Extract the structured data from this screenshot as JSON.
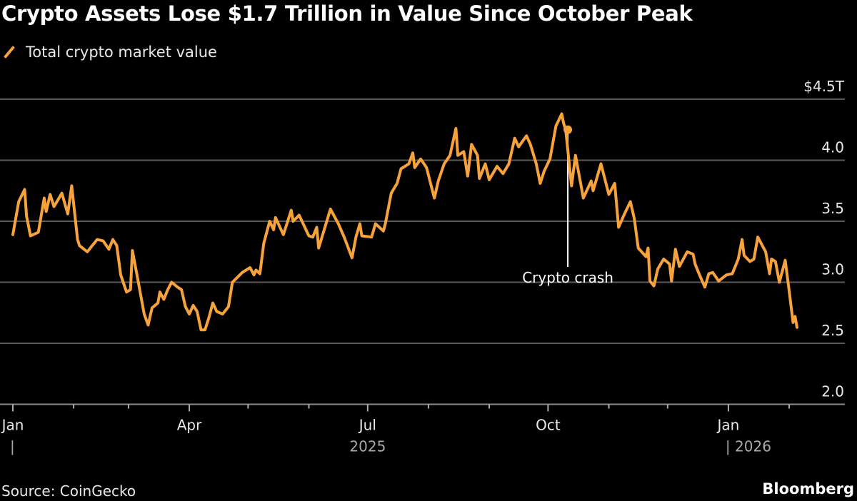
{
  "chart_data": {
    "type": "line",
    "title": "Crypto Assets Lose $1.7 Trillion in Value Since October Peak",
    "source": "Source: CoinGecko",
    "brand": "Bloomberg",
    "legend": {
      "placement": "top-left"
    },
    "grid": true,
    "ylim": [
      2.0,
      4.5
    ],
    "y_ticks": [
      {
        "value": 4.5,
        "label": "$4.5T"
      },
      {
        "value": 4.0,
        "label": "4.0"
      },
      {
        "value": 3.5,
        "label": "3.5"
      },
      {
        "value": 3.0,
        "label": "3.0"
      },
      {
        "value": 2.5,
        "label": "2.5"
      },
      {
        "value": 2.0,
        "label": "2.0"
      }
    ],
    "x_ticks": [
      {
        "date": "2025-01-01",
        "label": "Jan"
      },
      {
        "date": "2025-04-01",
        "label": "Apr"
      },
      {
        "date": "2025-07-01",
        "label": "Jul"
      },
      {
        "date": "2025-10-01",
        "label": "Oct"
      },
      {
        "date": "2026-01-01",
        "label": "Jan"
      }
    ],
    "year_labels": [
      {
        "date": "2025-01-01",
        "label": "|"
      },
      {
        "date": "2025-07-01",
        "label": "2025"
      },
      {
        "date": "2026-01-01",
        "label": "| 2026"
      }
    ],
    "annotations": [
      {
        "date": "2025-10-10",
        "value": 4.25,
        "label": "Crypto crash"
      }
    ],
    "series": [
      {
        "name": "Total crypto market value",
        "color": "#f7a23b",
        "points": [
          [
            "2025-01-01",
            3.39
          ],
          [
            "2025-01-04",
            3.66
          ],
          [
            "2025-01-07",
            3.76
          ],
          [
            "2025-01-08",
            3.54
          ],
          [
            "2025-01-10",
            3.38
          ],
          [
            "2025-01-14",
            3.41
          ],
          [
            "2025-01-17",
            3.69
          ],
          [
            "2025-01-18",
            3.58
          ],
          [
            "2025-01-20",
            3.72
          ],
          [
            "2025-01-22",
            3.62
          ],
          [
            "2025-01-26",
            3.73
          ],
          [
            "2025-01-29",
            3.56
          ],
          [
            "2025-01-31",
            3.79
          ],
          [
            "2025-02-03",
            3.35
          ],
          [
            "2025-02-04",
            3.3
          ],
          [
            "2025-02-08",
            3.25
          ],
          [
            "2025-02-13",
            3.35
          ],
          [
            "2025-02-16",
            3.34
          ],
          [
            "2025-02-19",
            3.27
          ],
          [
            "2025-02-21",
            3.35
          ],
          [
            "2025-02-23",
            3.3
          ],
          [
            "2025-02-25",
            3.06
          ],
          [
            "2025-02-28",
            2.92
          ],
          [
            "2025-03-02",
            2.94
          ],
          [
            "2025-03-03",
            3.26
          ],
          [
            "2025-03-06",
            3.0
          ],
          [
            "2025-03-09",
            2.74
          ],
          [
            "2025-03-11",
            2.65
          ],
          [
            "2025-03-13",
            2.79
          ],
          [
            "2025-03-16",
            2.83
          ],
          [
            "2025-03-17",
            2.92
          ],
          [
            "2025-03-19",
            2.86
          ],
          [
            "2025-03-21",
            2.94
          ],
          [
            "2025-03-23",
            3.0
          ],
          [
            "2025-03-26",
            2.96
          ],
          [
            "2025-03-28",
            2.94
          ],
          [
            "2025-03-30",
            2.8
          ],
          [
            "2025-04-01",
            2.74
          ],
          [
            "2025-04-03",
            2.81
          ],
          [
            "2025-04-05",
            2.76
          ],
          [
            "2025-04-07",
            2.61
          ],
          [
            "2025-04-09",
            2.61
          ],
          [
            "2025-04-11",
            2.71
          ],
          [
            "2025-04-13",
            2.83
          ],
          [
            "2025-04-15",
            2.76
          ],
          [
            "2025-04-18",
            2.74
          ],
          [
            "2025-04-21",
            2.8
          ],
          [
            "2025-04-23",
            3.0
          ],
          [
            "2025-04-28",
            3.08
          ],
          [
            "2025-05-02",
            3.12
          ],
          [
            "2025-05-04",
            3.06
          ],
          [
            "2025-05-05",
            3.1
          ],
          [
            "2025-05-07",
            3.07
          ],
          [
            "2025-05-09",
            3.32
          ],
          [
            "2025-05-12",
            3.5
          ],
          [
            "2025-05-14",
            3.43
          ],
          [
            "2025-05-15",
            3.53
          ],
          [
            "2025-05-19",
            3.39
          ],
          [
            "2025-05-23",
            3.59
          ],
          [
            "2025-05-24",
            3.5
          ],
          [
            "2025-05-27",
            3.55
          ],
          [
            "2025-06-01",
            3.38
          ],
          [
            "2025-06-03",
            3.37
          ],
          [
            "2025-06-05",
            3.45
          ],
          [
            "2025-06-06",
            3.28
          ],
          [
            "2025-06-12",
            3.6
          ],
          [
            "2025-06-16",
            3.48
          ],
          [
            "2025-06-19",
            3.37
          ],
          [
            "2025-06-23",
            3.2
          ],
          [
            "2025-06-25",
            3.37
          ],
          [
            "2025-06-27",
            3.48
          ],
          [
            "2025-06-28",
            3.38
          ],
          [
            "2025-07-03",
            3.37
          ],
          [
            "2025-07-05",
            3.48
          ],
          [
            "2025-07-09",
            3.42
          ],
          [
            "2025-07-10",
            3.48
          ],
          [
            "2025-07-13",
            3.73
          ],
          [
            "2025-07-16",
            3.81
          ],
          [
            "2025-07-18",
            3.93
          ],
          [
            "2025-07-22",
            3.97
          ],
          [
            "2025-07-24",
            4.06
          ],
          [
            "2025-07-25",
            3.94
          ],
          [
            "2025-07-28",
            4.01
          ],
          [
            "2025-07-31",
            3.94
          ],
          [
            "2025-08-04",
            3.69
          ],
          [
            "2025-08-06",
            3.83
          ],
          [
            "2025-08-09",
            3.97
          ],
          [
            "2025-08-12",
            4.04
          ],
          [
            "2025-08-15",
            4.26
          ],
          [
            "2025-08-16",
            4.04
          ],
          [
            "2025-08-19",
            4.07
          ],
          [
            "2025-08-21",
            3.87
          ],
          [
            "2025-08-23",
            4.13
          ],
          [
            "2025-08-26",
            4.04
          ],
          [
            "2025-08-27",
            3.85
          ],
          [
            "2025-08-30",
            3.97
          ],
          [
            "2025-09-01",
            3.84
          ],
          [
            "2025-09-05",
            3.95
          ],
          [
            "2025-09-08",
            3.89
          ],
          [
            "2025-09-11",
            3.97
          ],
          [
            "2025-09-14",
            4.18
          ],
          [
            "2025-09-16",
            4.11
          ],
          [
            "2025-09-20",
            4.2
          ],
          [
            "2025-09-22",
            4.13
          ],
          [
            "2025-09-25",
            3.97
          ],
          [
            "2025-09-27",
            3.81
          ],
          [
            "2025-09-29",
            3.91
          ],
          [
            "2025-10-02",
            4.01
          ],
          [
            "2025-10-05",
            4.28
          ],
          [
            "2025-10-08",
            4.38
          ],
          [
            "2025-10-09",
            4.3
          ],
          [
            "2025-10-10",
            4.25
          ],
          [
            "2025-10-13",
            3.79
          ],
          [
            "2025-10-15",
            4.04
          ],
          [
            "2025-10-19",
            3.69
          ],
          [
            "2025-10-23",
            3.83
          ],
          [
            "2025-10-24",
            3.75
          ],
          [
            "2025-10-28",
            3.97
          ],
          [
            "2025-11-01",
            3.72
          ],
          [
            "2025-11-04",
            3.81
          ],
          [
            "2025-11-06",
            3.45
          ],
          [
            "2025-11-09",
            3.56
          ],
          [
            "2025-11-12",
            3.66
          ],
          [
            "2025-11-14",
            3.52
          ],
          [
            "2025-11-16",
            3.28
          ],
          [
            "2025-11-20",
            3.21
          ],
          [
            "2025-11-21",
            3.28
          ],
          [
            "2025-11-22",
            3.01
          ],
          [
            "2025-11-24",
            2.97
          ],
          [
            "2025-11-26",
            3.11
          ],
          [
            "2025-11-29",
            3.19
          ],
          [
            "2025-12-02",
            3.15
          ],
          [
            "2025-12-03",
            3.01
          ],
          [
            "2025-12-05",
            3.27
          ],
          [
            "2025-12-07",
            3.13
          ],
          [
            "2025-12-11",
            3.25
          ],
          [
            "2025-12-14",
            3.23
          ],
          [
            "2025-12-15",
            3.15
          ],
          [
            "2025-12-17",
            3.07
          ],
          [
            "2025-12-20",
            2.96
          ],
          [
            "2025-12-22",
            3.07
          ],
          [
            "2025-12-24",
            3.08
          ],
          [
            "2025-12-27",
            3.01
          ],
          [
            "2025-12-31",
            3.06
          ],
          [
            "2026-01-03",
            3.07
          ],
          [
            "2026-01-06",
            3.19
          ],
          [
            "2026-01-08",
            3.35
          ],
          [
            "2026-01-09",
            3.22
          ],
          [
            "2026-01-12",
            3.17
          ],
          [
            "2026-01-14",
            3.19
          ],
          [
            "2026-01-16",
            3.37
          ],
          [
            "2026-01-18",
            3.31
          ],
          [
            "2026-01-20",
            3.25
          ],
          [
            "2026-01-22",
            3.07
          ],
          [
            "2026-01-23",
            3.19
          ],
          [
            "2026-01-25",
            3.17
          ],
          [
            "2026-01-27",
            3.0
          ],
          [
            "2026-01-30",
            3.18
          ],
          [
            "2026-02-01",
            2.93
          ],
          [
            "2026-02-03",
            2.67
          ],
          [
            "2026-02-04",
            2.72
          ],
          [
            "2026-02-05",
            2.63
          ]
        ]
      }
    ]
  },
  "colors": {
    "background": "#000000",
    "line": "#f7a23b",
    "grid": "#5a5a5a",
    "annotation": "#ffffff"
  }
}
